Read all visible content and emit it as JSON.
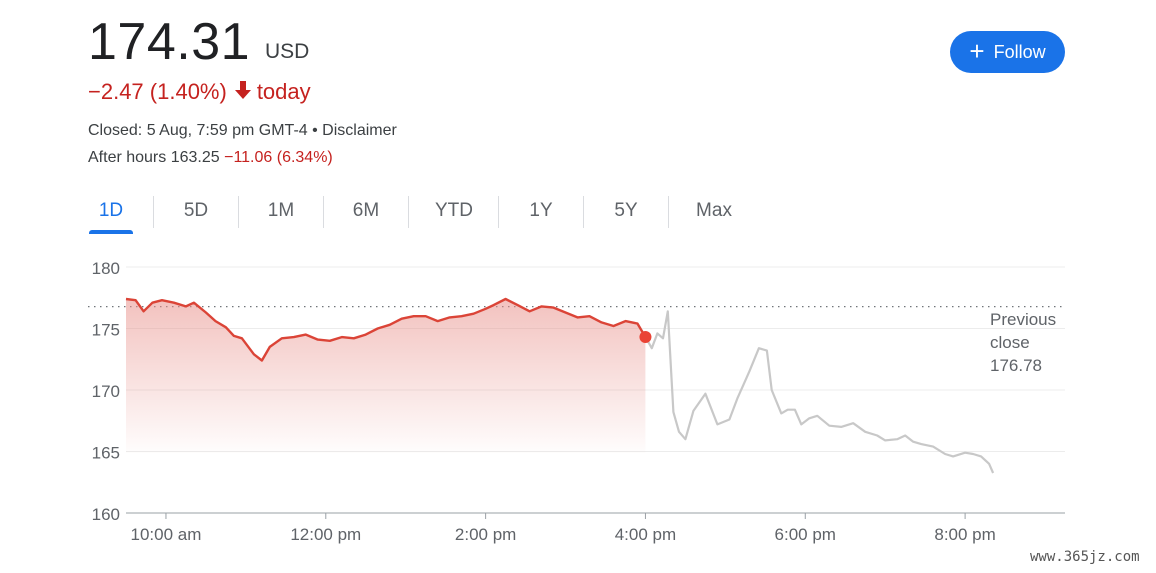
{
  "quote": {
    "price": "174.31",
    "currency": "USD",
    "change": "−2.47 (1.40%)",
    "change_suffix": "today",
    "closed_text": "Closed: 5 Aug, 7:59 pm GMT-4 • Disclaimer",
    "after_hours_label": "After hours 163.25",
    "after_hours_change": "−11.06 (6.34%)"
  },
  "follow_button": {
    "label": "Follow"
  },
  "tabs": [
    "1D",
    "5D",
    "1M",
    "6M",
    "YTD",
    "1Y",
    "5Y",
    "Max"
  ],
  "active_tab": "1D",
  "colors": {
    "accent": "#1a73e8",
    "negative": "#c5221f",
    "regular_line": "#db4437",
    "after_hours_line": "#c8c8c8"
  },
  "chart_data": {
    "type": "line",
    "ylim": [
      160,
      180
    ],
    "yticks": [
      180,
      175,
      170,
      165,
      160
    ],
    "xlim": [
      9.5,
      21.25
    ],
    "xtick_labels": [
      "10:00 am",
      "12:00 pm",
      "2:00 pm",
      "4:00 pm",
      "6:00 pm",
      "8:00 pm"
    ],
    "xtick_values": [
      10,
      12,
      14,
      16,
      18,
      20
    ],
    "previous_close": {
      "label_line1": "Previous",
      "label_line2": "close",
      "value": "176.78"
    },
    "grid": true,
    "series": [
      {
        "session": "regular",
        "x": [
          9.5,
          9.62,
          9.72,
          9.83,
          9.95,
          10.1,
          10.25,
          10.35,
          10.5,
          10.62,
          10.75,
          10.85,
          10.95,
          11.1,
          11.2,
          11.3,
          11.45,
          11.6,
          11.75,
          11.9,
          12.05,
          12.2,
          12.35,
          12.5,
          12.65,
          12.8,
          12.95,
          13.1,
          13.25,
          13.4,
          13.55,
          13.7,
          13.85,
          14.0,
          14.1,
          14.25,
          14.4,
          14.55,
          14.7,
          14.85,
          15.0,
          15.15,
          15.3,
          15.45,
          15.6,
          15.75,
          15.9,
          16.0
        ],
        "y": [
          177.4,
          177.3,
          176.4,
          177.1,
          177.3,
          177.1,
          176.8,
          177.1,
          176.3,
          175.6,
          175.1,
          174.4,
          174.2,
          172.9,
          172.4,
          173.5,
          174.2,
          174.3,
          174.5,
          174.1,
          174.0,
          174.3,
          174.2,
          174.5,
          175.0,
          175.3,
          175.8,
          176.0,
          176.0,
          175.6,
          175.9,
          176.0,
          176.2,
          176.6,
          176.9,
          177.4,
          176.9,
          176.4,
          176.8,
          176.7,
          176.3,
          175.9,
          176.0,
          175.5,
          175.2,
          175.6,
          175.4,
          174.31
        ]
      },
      {
        "session": "after_hours",
        "x": [
          16.0,
          16.08,
          16.15,
          16.22,
          16.28,
          16.35,
          16.42,
          16.5,
          16.6,
          16.75,
          16.9,
          17.05,
          17.15,
          17.3,
          17.42,
          17.52,
          17.58,
          17.7,
          17.78,
          17.87,
          17.95,
          18.05,
          18.15,
          18.3,
          18.45,
          18.6,
          18.75,
          18.9,
          19.0,
          19.15,
          19.25,
          19.35,
          19.45,
          19.6,
          19.75,
          19.85,
          20.0,
          20.1,
          20.2,
          20.3,
          20.35
        ],
        "y": [
          174.31,
          173.4,
          174.6,
          174.2,
          176.4,
          168.2,
          166.6,
          166.0,
          168.3,
          169.7,
          167.2,
          167.6,
          169.3,
          171.5,
          173.4,
          173.2,
          170.0,
          168.1,
          168.4,
          168.4,
          167.2,
          167.7,
          167.9,
          167.1,
          167.0,
          167.3,
          166.6,
          166.3,
          165.9,
          166.0,
          166.3,
          165.8,
          165.6,
          165.4,
          164.8,
          164.6,
          164.9,
          164.8,
          164.6,
          164.0,
          163.25
        ]
      }
    ]
  },
  "watermark": "www.365jz.com"
}
